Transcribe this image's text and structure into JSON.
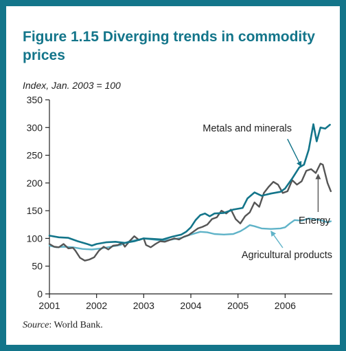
{
  "figure": {
    "title": "Figure 1.15 Diverging trends in commodity prices",
    "subtitle": "Index, Jan. 2003 = 100",
    "source_label": "Source",
    "source_text": ": World Bank."
  },
  "chart_data": {
    "type": "line",
    "title": "Figure 1.15 Diverging trends in commodity prices",
    "ylabel": "Index, Jan. 2003 = 100",
    "xlabel": "",
    "xlim": [
      2001,
      2007
    ],
    "ylim": [
      0,
      350
    ],
    "x_ticks": [
      2001,
      2002,
      2003,
      2004,
      2005,
      2006
    ],
    "x_tick_labels": [
      "2001",
      "2002",
      "2003",
      "2004",
      "2005",
      "2006"
    ],
    "y_ticks": [
      0,
      50,
      100,
      150,
      200,
      250,
      300,
      350
    ],
    "y_tick_labels": [
      "0",
      "50",
      "100",
      "150",
      "200",
      "250",
      "300",
      "350"
    ],
    "grid": false,
    "legend": "none (series labeled by annotations with arrows)",
    "series": [
      {
        "name": "Metals and minerals",
        "color": "#13758a",
        "points": [
          [
            2001.0,
            105
          ],
          [
            2001.2,
            102
          ],
          [
            2001.4,
            101
          ],
          [
            2001.6,
            95
          ],
          [
            2001.8,
            90
          ],
          [
            2001.9,
            87
          ],
          [
            2002.0,
            90
          ],
          [
            2002.2,
            93
          ],
          [
            2002.4,
            94
          ],
          [
            2002.6,
            92
          ],
          [
            2002.8,
            95
          ],
          [
            2003.0,
            100
          ],
          [
            2003.2,
            99
          ],
          [
            2003.4,
            98
          ],
          [
            2003.6,
            103
          ],
          [
            2003.8,
            107
          ],
          [
            2003.9,
            112
          ],
          [
            2004.0,
            120
          ],
          [
            2004.1,
            133
          ],
          [
            2004.2,
            142
          ],
          [
            2004.3,
            145
          ],
          [
            2004.4,
            140
          ],
          [
            2004.5,
            145
          ],
          [
            2004.7,
            146
          ],
          [
            2004.9,
            152
          ],
          [
            2005.1,
            155
          ],
          [
            2005.2,
            172
          ],
          [
            2005.35,
            183
          ],
          [
            2005.5,
            177
          ],
          [
            2005.7,
            181
          ],
          [
            2005.9,
            184
          ],
          [
            2006.0,
            190
          ],
          [
            2006.15,
            208
          ],
          [
            2006.3,
            228
          ],
          [
            2006.4,
            233
          ],
          [
            2006.5,
            260
          ],
          [
            2006.6,
            306
          ],
          [
            2006.67,
            275
          ],
          [
            2006.75,
            300
          ],
          [
            2006.85,
            298
          ],
          [
            2006.95,
            305
          ]
        ]
      },
      {
        "name": "Energy",
        "color": "#555555",
        "points": [
          [
            2001.0,
            90
          ],
          [
            2001.1,
            85
          ],
          [
            2001.2,
            84
          ],
          [
            2001.3,
            90
          ],
          [
            2001.4,
            82
          ],
          [
            2001.5,
            83
          ],
          [
            2001.55,
            78
          ],
          [
            2001.65,
            65
          ],
          [
            2001.75,
            60
          ],
          [
            2001.85,
            62
          ],
          [
            2001.95,
            66
          ],
          [
            2002.05,
            78
          ],
          [
            2002.15,
            85
          ],
          [
            2002.25,
            80
          ],
          [
            2002.35,
            87
          ],
          [
            2002.45,
            88
          ],
          [
            2002.55,
            92
          ],
          [
            2002.6,
            85
          ],
          [
            2002.7,
            95
          ],
          [
            2002.8,
            104
          ],
          [
            2002.9,
            97
          ],
          [
            2003.0,
            100
          ],
          [
            2003.05,
            88
          ],
          [
            2003.15,
            84
          ],
          [
            2003.25,
            90
          ],
          [
            2003.35,
            95
          ],
          [
            2003.45,
            94
          ],
          [
            2003.55,
            97
          ],
          [
            2003.65,
            100
          ],
          [
            2003.75,
            98
          ],
          [
            2003.85,
            103
          ],
          [
            2003.95,
            106
          ],
          [
            2004.05,
            112
          ],
          [
            2004.15,
            118
          ],
          [
            2004.25,
            121
          ],
          [
            2004.35,
            125
          ],
          [
            2004.45,
            135
          ],
          [
            2004.55,
            138
          ],
          [
            2004.65,
            150
          ],
          [
            2004.75,
            145
          ],
          [
            2004.85,
            152
          ],
          [
            2004.95,
            135
          ],
          [
            2005.05,
            127
          ],
          [
            2005.15,
            140
          ],
          [
            2005.25,
            147
          ],
          [
            2005.35,
            165
          ],
          [
            2005.45,
            157
          ],
          [
            2005.55,
            182
          ],
          [
            2005.65,
            193
          ],
          [
            2005.75,
            202
          ],
          [
            2005.85,
            197
          ],
          [
            2005.95,
            182
          ],
          [
            2006.05,
            185
          ],
          [
            2006.15,
            205
          ],
          [
            2006.25,
            197
          ],
          [
            2006.35,
            203
          ],
          [
            2006.45,
            222
          ],
          [
            2006.55,
            225
          ],
          [
            2006.65,
            218
          ],
          [
            2006.75,
            235
          ],
          [
            2006.8,
            233
          ],
          [
            2006.9,
            200
          ],
          [
            2006.97,
            185
          ]
        ]
      },
      {
        "name": "Agricultural products",
        "color": "#5fb3c8",
        "points": [
          [
            2001.0,
            87
          ],
          [
            2001.15,
            84
          ],
          [
            2001.3,
            85
          ],
          [
            2001.5,
            84
          ],
          [
            2001.7,
            81
          ],
          [
            2001.9,
            80
          ],
          [
            2002.1,
            82
          ],
          [
            2002.3,
            85
          ],
          [
            2002.5,
            88
          ],
          [
            2002.7,
            95
          ],
          [
            2002.9,
            98
          ],
          [
            2003.0,
            100
          ],
          [
            2003.2,
            98
          ],
          [
            2003.4,
            96
          ],
          [
            2003.6,
            98
          ],
          [
            2003.8,
            101
          ],
          [
            2004.0,
            107
          ],
          [
            2004.2,
            112
          ],
          [
            2004.35,
            111
          ],
          [
            2004.5,
            108
          ],
          [
            2004.7,
            107
          ],
          [
            2004.9,
            108
          ],
          [
            2005.05,
            113
          ],
          [
            2005.15,
            118
          ],
          [
            2005.25,
            124
          ],
          [
            2005.35,
            122
          ],
          [
            2005.5,
            118
          ],
          [
            2005.7,
            117
          ],
          [
            2005.9,
            118
          ],
          [
            2006.0,
            120
          ],
          [
            2006.1,
            127
          ],
          [
            2006.2,
            133
          ],
          [
            2006.35,
            132
          ],
          [
            2006.5,
            136
          ],
          [
            2006.6,
            135
          ],
          [
            2006.75,
            133
          ],
          [
            2006.9,
            129
          ],
          [
            2006.97,
            131
          ]
        ]
      }
    ],
    "annotations": [
      {
        "text": "Metals and minerals",
        "series": "Metals and minerals"
      },
      {
        "text": "Energy",
        "series": "Energy"
      },
      {
        "text": "Agricultural products",
        "series": "Agricultural products"
      }
    ]
  }
}
